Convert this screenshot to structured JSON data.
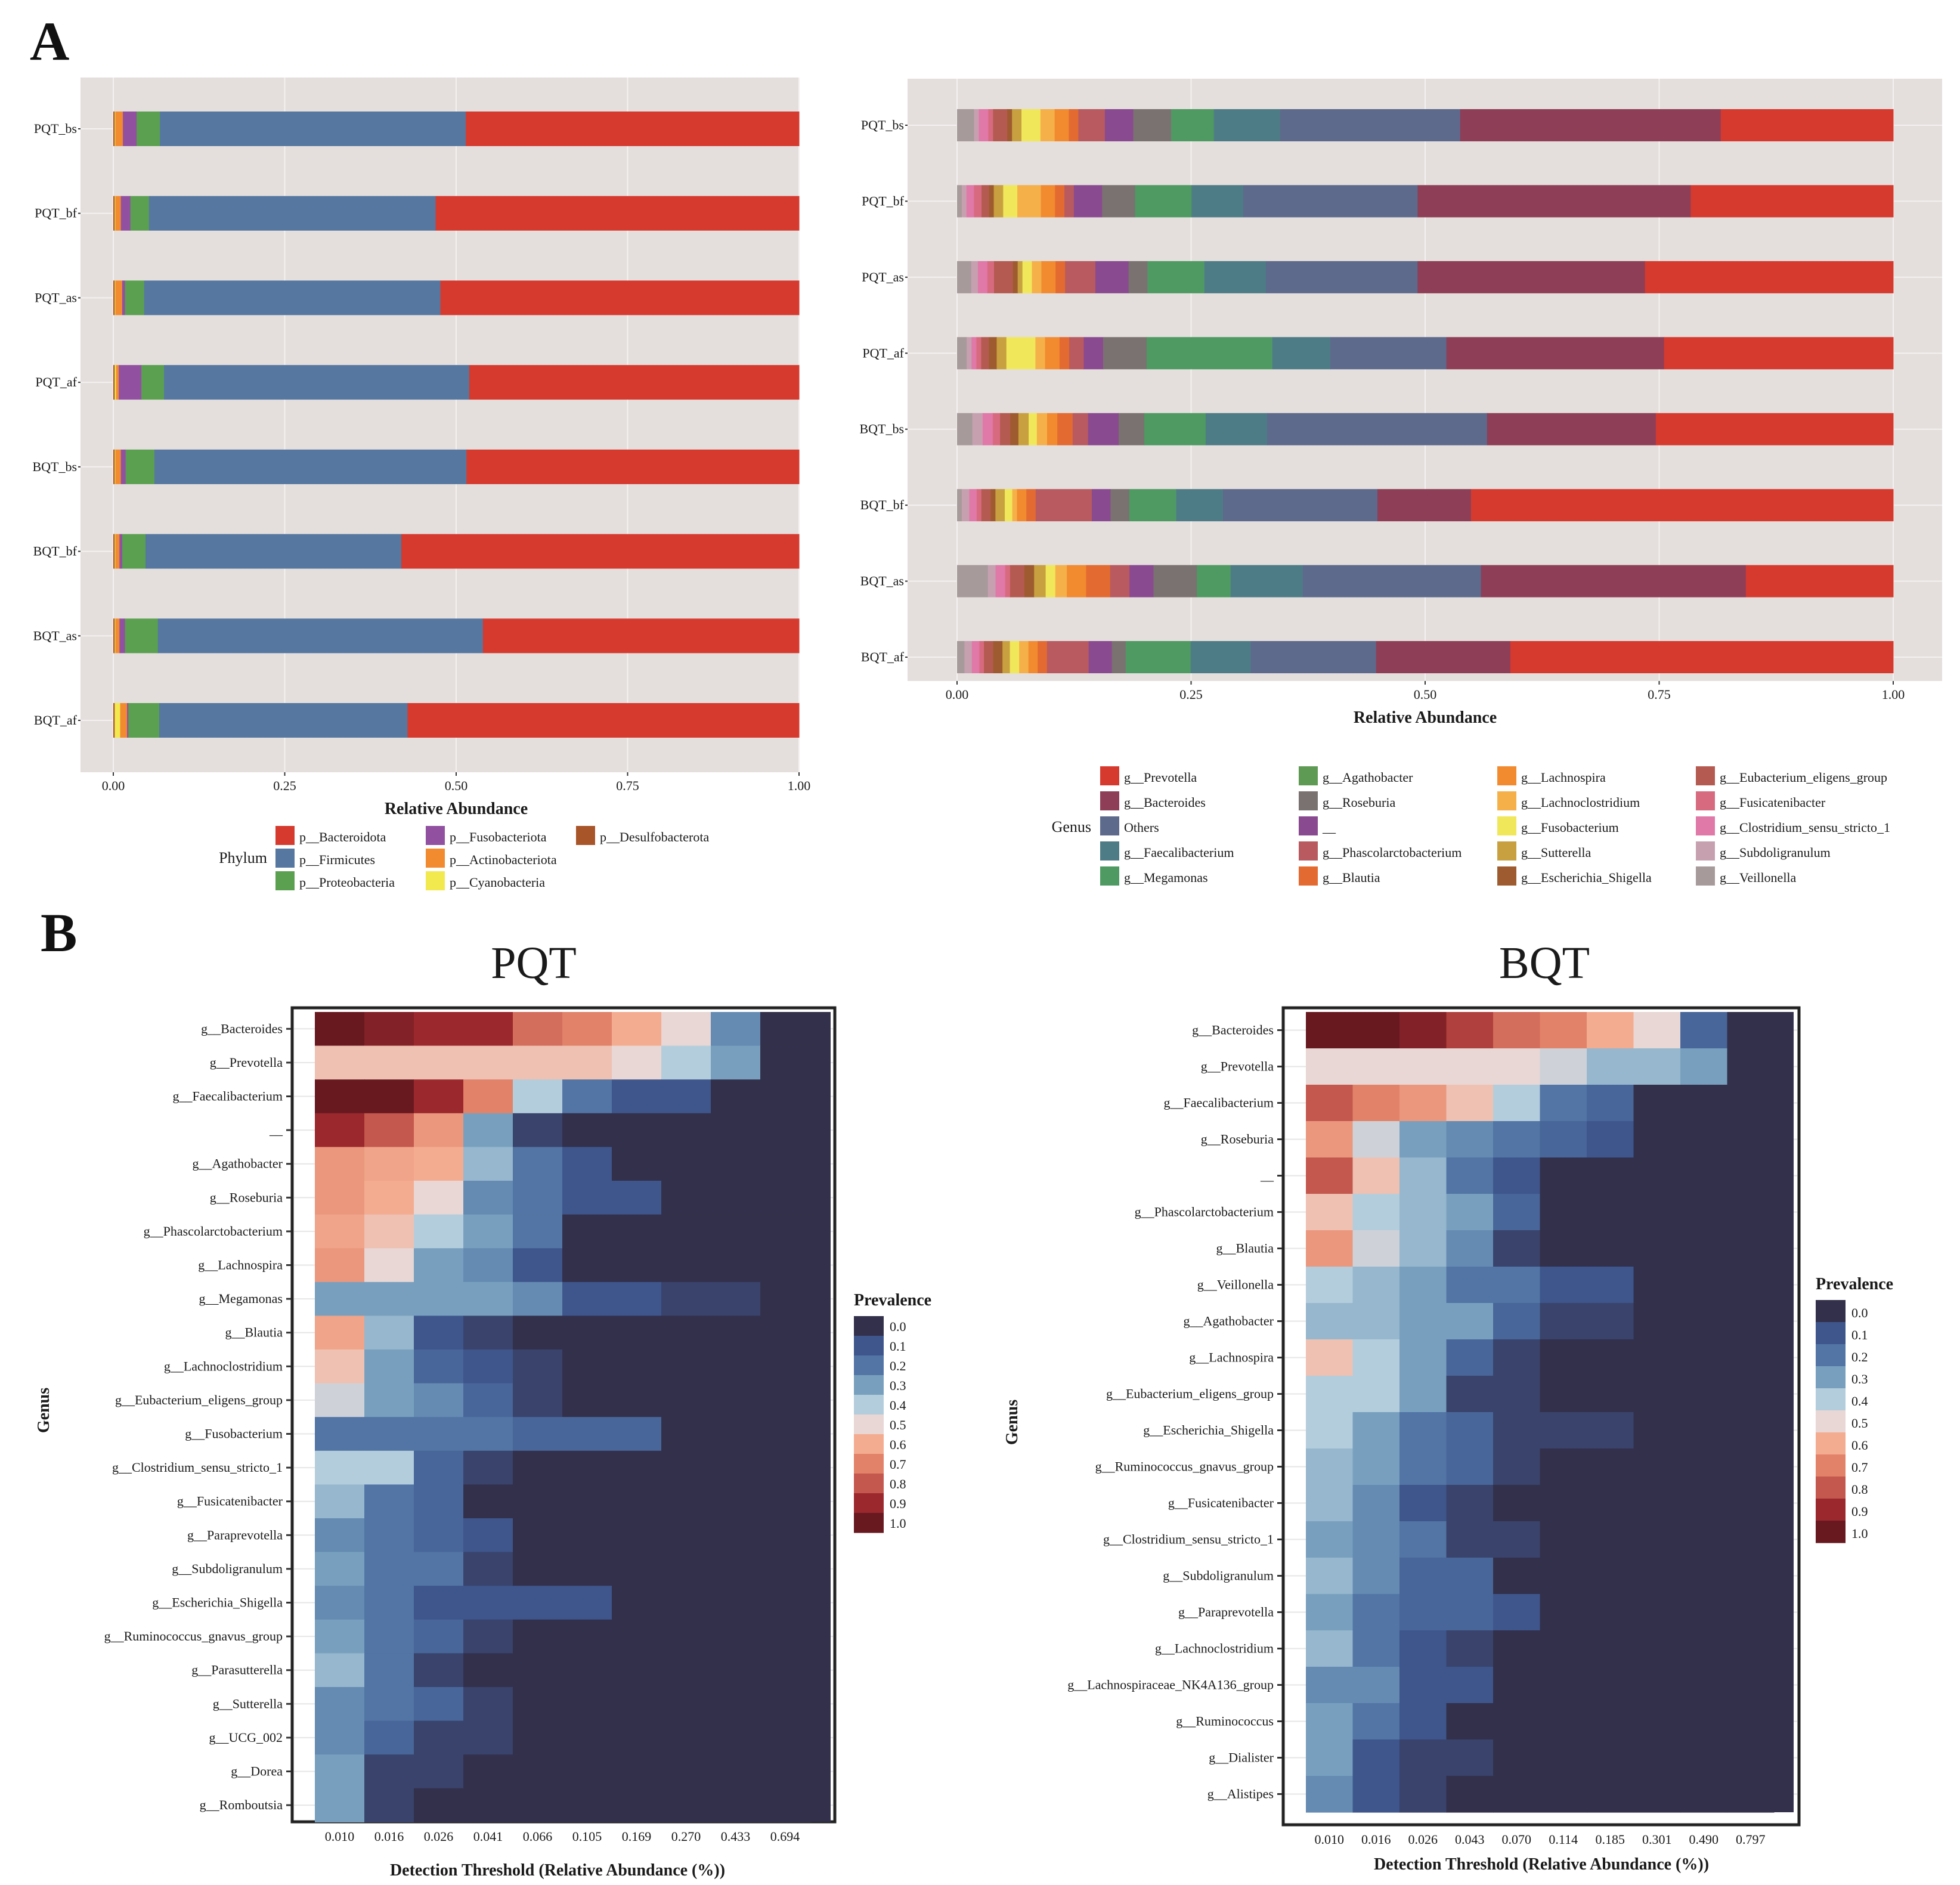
{
  "panel_labels": [
    "A",
    "B"
  ],
  "chart_data": [
    {
      "id": "phylum-bar",
      "type": "bar",
      "orientation": "horizontal",
      "stacked": true,
      "categories": [
        "PQT_bs",
        "PQT_bf",
        "PQT_as",
        "PQT_af",
        "BQT_bs",
        "BQT_bf",
        "BQT_as",
        "BQT_af"
      ],
      "xlabel": "Relative Abundance",
      "xticks": [
        "0.00",
        "0.25",
        "0.50",
        "0.75",
        "1.00"
      ],
      "xlim": [
        0,
        1
      ],
      "legend_title": "Phylum",
      "legend_position": "bottom",
      "series": [
        {
          "name": "p__Desulfobacterota",
          "color": "#a8552a",
          "values": [
            0.002,
            0.002,
            0.002,
            0.002,
            0.002,
            0.002,
            0.002,
            0.002
          ]
        },
        {
          "name": "p__Cyanobacteria",
          "color": "#f2e94e",
          "values": [
            0.001,
            0.001,
            0.001,
            0.002,
            0.001,
            0.001,
            0.001,
            0.008
          ]
        },
        {
          "name": "p__Actinobacteriota",
          "color": "#f28a30",
          "values": [
            0.011,
            0.008,
            0.01,
            0.004,
            0.008,
            0.006,
            0.006,
            0.01
          ]
        },
        {
          "name": "p__Fusobacteriota",
          "color": "#9250a0",
          "values": [
            0.02,
            0.014,
            0.004,
            0.033,
            0.007,
            0.004,
            0.008,
            0.002
          ]
        },
        {
          "name": "p__Proteobacteria",
          "color": "#5aa050",
          "values": [
            0.034,
            0.027,
            0.028,
            0.033,
            0.042,
            0.034,
            0.048,
            0.045
          ]
        },
        {
          "name": "p__Firmicutes",
          "color": "#5577a0",
          "values": [
            0.446,
            0.418,
            0.432,
            0.445,
            0.455,
            0.373,
            0.474,
            0.362
          ]
        },
        {
          "name": "p__Bacteroidota",
          "color": "#d63a2f",
          "values": [
            0.486,
            0.53,
            0.523,
            0.481,
            0.485,
            0.58,
            0.461,
            0.571
          ]
        }
      ],
      "legend_order": [
        "p__Bacteroidota",
        "p__Firmicutes",
        "p__Proteobacteria",
        "p__Fusobacteriota",
        "p__Actinobacteriota",
        "p__Cyanobacteria",
        "p__Desulfobacterota"
      ]
    },
    {
      "id": "genus-bar",
      "type": "bar",
      "orientation": "horizontal",
      "stacked": true,
      "categories": [
        "PQT_bs",
        "PQT_bf",
        "PQT_as",
        "PQT_af",
        "BQT_bs",
        "BQT_bf",
        "BQT_as",
        "BQT_af"
      ],
      "xlabel": "Relative Abundance",
      "xticks": [
        "0.00",
        "0.25",
        "0.50",
        "0.75",
        "1.00"
      ],
      "xlim": [
        0,
        1
      ],
      "legend_title": "Genus",
      "legend_position": "bottom",
      "series": [
        {
          "name": "g__Veillonella",
          "color": "#a69a9a",
          "values": [
            0.018,
            0.005,
            0.015,
            0.01,
            0.015,
            0.005,
            0.032,
            0.008
          ]
        },
        {
          "name": "g__Subdoligranulum",
          "color": "#c7a0b0",
          "values": [
            0.005,
            0.005,
            0.007,
            0.005,
            0.01,
            0.008,
            0.008,
            0.008
          ]
        },
        {
          "name": "g__Clostridium_sensu_stricto_1",
          "color": "#e078a8",
          "values": [
            0.01,
            0.008,
            0.01,
            0.005,
            0.01,
            0.008,
            0.01,
            0.008
          ]
        },
        {
          "name": "g__Fusicatenibacter",
          "color": "#d86a80",
          "values": [
            0.005,
            0.008,
            0.007,
            0.005,
            0.007,
            0.005,
            0.005,
            0.005
          ]
        },
        {
          "name": "g__Eubacterium_eligens_group",
          "color": "#b55a50",
          "values": [
            0.015,
            0.008,
            0.02,
            0.008,
            0.01,
            0.01,
            0.015,
            0.01
          ]
        },
        {
          "name": "g__Escherichia_Shigella",
          "color": "#9e5b2f",
          "values": [
            0.005,
            0.005,
            0.005,
            0.008,
            0.008,
            0.005,
            0.01,
            0.01
          ]
        },
        {
          "name": "g__Sutterella",
          "color": "#c8a040",
          "values": [
            0.01,
            0.01,
            0.005,
            0.01,
            0.01,
            0.01,
            0.012,
            0.008
          ]
        },
        {
          "name": "g__Fusobacterium",
          "color": "#f0e85a",
          "values": [
            0.02,
            0.015,
            0.01,
            0.03,
            0.008,
            0.008,
            0.01,
            0.01
          ]
        },
        {
          "name": "g__Lachnoclostridium",
          "color": "#f5b04a",
          "values": [
            0.015,
            0.025,
            0.01,
            0.01,
            0.01,
            0.005,
            0.012,
            0.01
          ]
        },
        {
          "name": "g__Lachnospira",
          "color": "#f28a30",
          "values": [
            0.015,
            0.015,
            0.015,
            0.015,
            0.01,
            0.01,
            0.02,
            0.01
          ]
        },
        {
          "name": "g__Blautia",
          "color": "#e36a30",
          "values": [
            0.01,
            0.01,
            0.01,
            0.01,
            0.015,
            0.01,
            0.025,
            0.01
          ]
        },
        {
          "name": "g__Phascolarctobacterium",
          "color": "#b85a60",
          "values": [
            0.028,
            0.01,
            0.032,
            0.015,
            0.015,
            0.06,
            0.02,
            0.045
          ]
        },
        {
          "name": "__",
          "color": "#8a4a90",
          "values": [
            0.03,
            0.03,
            0.035,
            0.02,
            0.03,
            0.02,
            0.025,
            0.025
          ]
        },
        {
          "name": "g__Roseburia",
          "color": "#7a7270",
          "values": [
            0.04,
            0.035,
            0.02,
            0.045,
            0.025,
            0.02,
            0.045,
            0.015
          ]
        },
        {
          "name": "g__Megamonas",
          "color": "#4e9a62",
          "values": [
            0.045,
            0.06,
            0.06,
            0.13,
            0.06,
            0.05,
            0.035,
            0.07
          ]
        },
        {
          "name": "g__Faecalibacterium",
          "color": "#4e7c86",
          "values": [
            0.07,
            0.055,
            0.065,
            0.06,
            0.06,
            0.05,
            0.075,
            0.065
          ]
        },
        {
          "name": "Others",
          "color": "#5d6a8c",
          "values": [
            0.19,
            0.185,
            0.16,
            0.12,
            0.215,
            0.165,
            0.185,
            0.135
          ]
        },
        {
          "name": "g__Bacteroides",
          "color": "#8e3e56",
          "values": [
            0.275,
            0.29,
            0.24,
            0.225,
            0.165,
            0.1,
            0.275,
            0.145
          ]
        },
        {
          "name": "g__Prevotella",
          "color": "#d63a2f",
          "values": [
            0.182,
            0.215,
            0.262,
            0.237,
            0.232,
            0.451,
            0.153,
            0.413
          ]
        }
      ],
      "legend_order": [
        "g__Prevotella",
        "g__Bacteroides",
        "Others",
        "g__Faecalibacterium",
        "g__Megamonas",
        "g__Agathobacter",
        "g__Roseburia",
        "__",
        "g__Phascolarctobacterium",
        "g__Blautia",
        "g__Lachnospira",
        "g__Lachnoclostridium",
        "g__Fusobacterium",
        "g__Sutterella",
        "g__Escherichia_Shigella",
        "g__Eubacterium_eligens_group",
        "g__Fusicatenibacter",
        "g__Clostridium_sensu_stricto_1",
        "g__Subdoligranulum",
        "g__Veillonella"
      ],
      "legend_extra": {
        "g__Agathobacter": "#5f9a55"
      }
    },
    {
      "id": "pqt-heatmap",
      "type": "heatmap",
      "title": "PQT",
      "xlabel": "Detection Threshold (Relative Abundance (%))",
      "ylabel": "Genus",
      "x": [
        "0.010",
        "0.016",
        "0.026",
        "0.041",
        "0.066",
        "0.105",
        "0.169",
        "0.270",
        "0.433",
        "0.694"
      ],
      "y": [
        "g__Bacteroides",
        "g__Prevotella",
        "g__Faecalibacterium",
        "__",
        "g__Agathobacter",
        "g__Roseburia",
        "g__Phascolarctobacterium",
        "g__Lachnospira",
        "g__Megamonas",
        "g__Blautia",
        "g__Lachnoclostridium",
        "g__Eubacterium_eligens_group",
        "g__Fusobacterium",
        "g__Clostridium_sensu_stricto_1",
        "g__Fusicatenibacter",
        "g__Paraprevotella",
        "g__Subdoligranulum",
        "g__Escherichia_Shigella",
        "g__Ruminococcus_gnavus_group",
        "g__Parasutterella",
        "g__Sutterella",
        "g__UCG_002",
        "g__Dorea",
        "g__Romboutsia"
      ],
      "values": [
        [
          1.0,
          0.95,
          0.9,
          0.9,
          0.75,
          0.7,
          0.6,
          0.5,
          0.25,
          0.0
        ],
        [
          0.55,
          0.55,
          0.55,
          0.55,
          0.55,
          0.55,
          0.5,
          0.4,
          0.3,
          0.0
        ],
        [
          1.0,
          1.0,
          0.9,
          0.7,
          0.4,
          0.2,
          0.1,
          0.1,
          0.0,
          0.0
        ],
        [
          0.9,
          0.8,
          0.65,
          0.3,
          0.05,
          0.0,
          0.0,
          0.0,
          0.0,
          0.0
        ],
        [
          0.65,
          0.62,
          0.6,
          0.35,
          0.2,
          0.1,
          0.0,
          0.0,
          0.0,
          0.0
        ],
        [
          0.65,
          0.6,
          0.5,
          0.25,
          0.2,
          0.1,
          0.1,
          0.0,
          0.0,
          0.0
        ],
        [
          0.62,
          0.55,
          0.4,
          0.3,
          0.2,
          0.0,
          0.0,
          0.0,
          0.0,
          0.0
        ],
        [
          0.65,
          0.5,
          0.3,
          0.25,
          0.1,
          0.0,
          0.0,
          0.0,
          0.0,
          0.0
        ],
        [
          0.3,
          0.3,
          0.3,
          0.3,
          0.25,
          0.1,
          0.1,
          0.05,
          0.05,
          0.0
        ],
        [
          0.62,
          0.35,
          0.1,
          0.05,
          0.0,
          0.0,
          0.0,
          0.0,
          0.0,
          0.0
        ],
        [
          0.55,
          0.3,
          0.15,
          0.1,
          0.05,
          0.0,
          0.0,
          0.0,
          0.0,
          0.0
        ],
        [
          0.45,
          0.3,
          0.25,
          0.15,
          0.05,
          0.0,
          0.0,
          0.0,
          0.0,
          0.0
        ],
        [
          0.2,
          0.2,
          0.2,
          0.2,
          0.15,
          0.15,
          0.15,
          0.0,
          0.0,
          0.0
        ],
        [
          0.4,
          0.4,
          0.15,
          0.05,
          0.0,
          0.0,
          0.0,
          0.0,
          0.0,
          0.0
        ],
        [
          0.35,
          0.2,
          0.15,
          0.0,
          0.0,
          0.0,
          0.0,
          0.0,
          0.0,
          0.0
        ],
        [
          0.25,
          0.2,
          0.15,
          0.1,
          0.0,
          0.0,
          0.0,
          0.0,
          0.0,
          0.0
        ],
        [
          0.3,
          0.2,
          0.2,
          0.05,
          0.0,
          0.0,
          0.0,
          0.0,
          0.0,
          0.0
        ],
        [
          0.25,
          0.2,
          0.1,
          0.1,
          0.1,
          0.1,
          0.0,
          0.0,
          0.0,
          0.0
        ],
        [
          0.3,
          0.2,
          0.15,
          0.05,
          0.0,
          0.0,
          0.0,
          0.0,
          0.0,
          0.0
        ],
        [
          0.35,
          0.2,
          0.05,
          0.0,
          0.0,
          0.0,
          0.0,
          0.0,
          0.0,
          0.0
        ],
        [
          0.25,
          0.2,
          0.15,
          0.05,
          0.0,
          0.0,
          0.0,
          0.0,
          0.0,
          0.0
        ],
        [
          0.25,
          0.15,
          0.05,
          0.05,
          0.0,
          0.0,
          0.0,
          0.0,
          0.0,
          0.0
        ],
        [
          0.3,
          0.05,
          0.05,
          0.0,
          0.0,
          0.0,
          0.0,
          0.0,
          0.0,
          0.0
        ],
        [
          0.3,
          0.05,
          0.0,
          0.0,
          0.0,
          0.0,
          0.0,
          0.0,
          0.0,
          0.0
        ]
      ],
      "legend_title": "Prevalence",
      "legend_labels": [
        "0.0",
        "0.1",
        "0.2",
        "0.3",
        "0.4",
        "0.5",
        "0.6",
        "0.7",
        "0.8",
        "0.9",
        "1.0"
      ]
    },
    {
      "id": "bqt-heatmap",
      "type": "heatmap",
      "title": "BQT",
      "xlabel": "Detection Threshold (Relative Abundance (%))",
      "ylabel": "Genus",
      "x": [
        "0.010",
        "0.016",
        "0.026",
        "0.043",
        "0.070",
        "0.114",
        "0.185",
        "0.301",
        "0.490",
        "0.797"
      ],
      "y": [
        "g__Bacteroides",
        "g__Prevotella",
        "g__Faecalibacterium",
        "g__Roseburia",
        "__",
        "g__Phascolarctobacterium",
        "g__Blautia",
        "g__Veillonella",
        "g__Agathobacter",
        "g__Lachnospira",
        "g__Eubacterium_eligens_group",
        "g__Escherichia_Shigella",
        "g__Ruminococcus_gnavus_group",
        "g__Fusicatenibacter",
        "g__Clostridium_sensu_stricto_1",
        "g__Subdoligranulum",
        "g__Paraprevotella",
        "g__Lachnoclostridium",
        "g__Lachnospiraceae_NK4A136_group",
        "g__Ruminococcus",
        "g__Dialister",
        "g__Alistipes"
      ],
      "values": [
        [
          1.0,
          1.0,
          0.95,
          0.85,
          0.75,
          0.7,
          0.6,
          0.5,
          0.15,
          0.0
        ],
        [
          0.5,
          0.5,
          0.5,
          0.5,
          0.5,
          0.45,
          0.35,
          0.35,
          0.3,
          0.0
        ],
        [
          0.8,
          0.7,
          0.65,
          0.55,
          0.4,
          0.2,
          0.15,
          0.0,
          0.0,
          0.0
        ],
        [
          0.65,
          0.45,
          0.3,
          0.25,
          0.2,
          0.15,
          0.1,
          0.0,
          0.0,
          0.0
        ],
        [
          0.8,
          0.55,
          0.35,
          0.2,
          0.1,
          0.0,
          0.0,
          0.0,
          0.0,
          0.0
        ],
        [
          0.55,
          0.4,
          0.35,
          0.3,
          0.15,
          0.0,
          0.0,
          0.0,
          0.0,
          0.0
        ],
        [
          0.65,
          0.45,
          0.35,
          0.25,
          0.05,
          0.0,
          0.0,
          0.0,
          0.0,
          0.0
        ],
        [
          0.4,
          0.35,
          0.3,
          0.2,
          0.2,
          0.1,
          0.1,
          0.0,
          0.0,
          0.0
        ],
        [
          0.35,
          0.35,
          0.3,
          0.3,
          0.15,
          0.05,
          0.05,
          0.0,
          0.0,
          0.0
        ],
        [
          0.55,
          0.4,
          0.3,
          0.15,
          0.05,
          0.0,
          0.0,
          0.0,
          0.0,
          0.0
        ],
        [
          0.4,
          0.4,
          0.3,
          0.05,
          0.05,
          0.0,
          0.0,
          0.0,
          0.0,
          0.0
        ],
        [
          0.4,
          0.3,
          0.2,
          0.15,
          0.05,
          0.05,
          0.05,
          0.0,
          0.0,
          0.0
        ],
        [
          0.35,
          0.3,
          0.2,
          0.15,
          0.05,
          0.0,
          0.0,
          0.0,
          0.0,
          0.0
        ],
        [
          0.35,
          0.25,
          0.1,
          0.05,
          0.0,
          0.0,
          0.0,
          0.0,
          0.0,
          0.0
        ],
        [
          0.3,
          0.25,
          0.2,
          0.05,
          0.05,
          0.0,
          0.0,
          0.0,
          0.0,
          0.0
        ],
        [
          0.35,
          0.25,
          0.15,
          0.15,
          0.0,
          0.0,
          0.0,
          0.0,
          0.0,
          0.0
        ],
        [
          0.3,
          0.2,
          0.15,
          0.15,
          0.1,
          0.0,
          0.0,
          0.0,
          0.0,
          0.0
        ],
        [
          0.35,
          0.2,
          0.1,
          0.05,
          0.0,
          0.0,
          0.0,
          0.0,
          0.0,
          0.0
        ],
        [
          0.25,
          0.25,
          0.1,
          0.1,
          0.0,
          0.0,
          0.0,
          0.0,
          0.0,
          0.0
        ],
        [
          0.3,
          0.2,
          0.1,
          0.0,
          0.0,
          0.0,
          0.0,
          0.0,
          0.0,
          0.0
        ],
        [
          0.3,
          0.1,
          0.05,
          0.05,
          0.0,
          0.0,
          0.0,
          0.0,
          0.0,
          0.0
        ],
        [
          0.25,
          0.1,
          0.05,
          0.0,
          0.0,
          0.0,
          0.0,
          0.0,
          0.0,
          0.0
        ]
      ],
      "legend_title": "Prevalence",
      "legend_labels": [
        "0.0",
        "0.1",
        "0.2",
        "0.3",
        "0.4",
        "0.5",
        "0.6",
        "0.7",
        "0.8",
        "0.9",
        "1.0"
      ]
    }
  ]
}
